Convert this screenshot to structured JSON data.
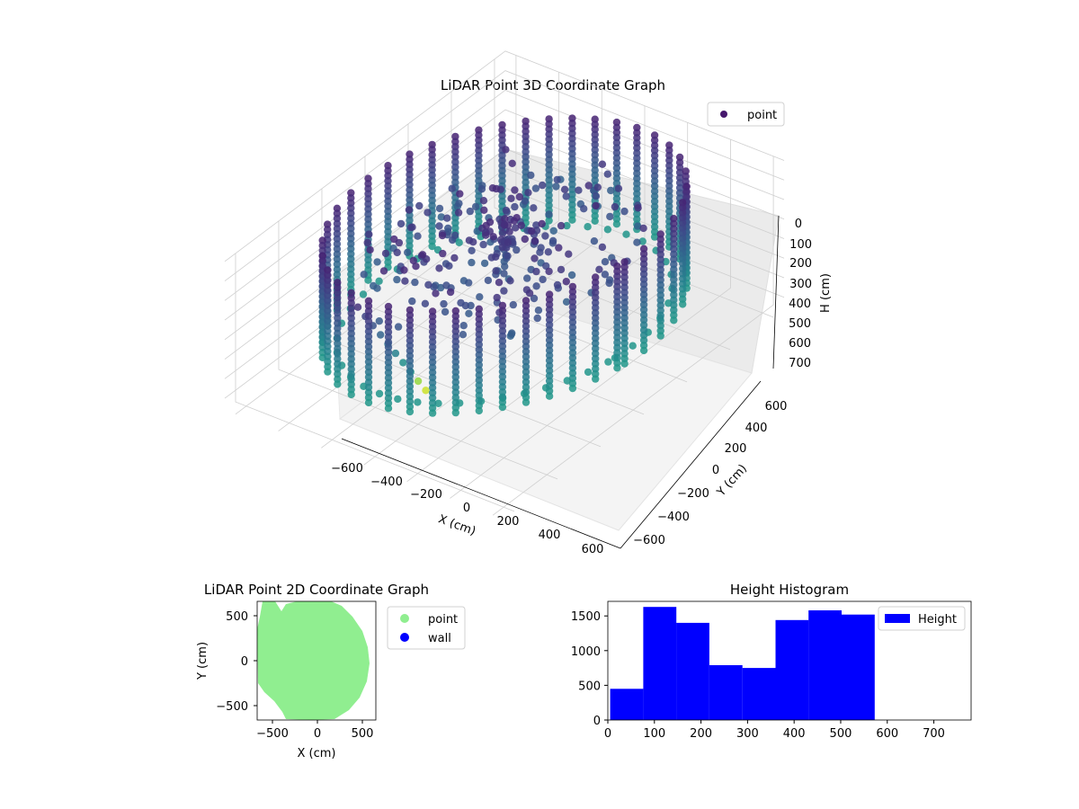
{
  "chart_data": [
    {
      "type": "scatter",
      "projection": "3d",
      "title": "LiDAR Point 3D Coordinate Graph",
      "xlabel": "X (cm)",
      "ylabel": "Y (cm)",
      "zlabel": "H (cm)",
      "xticks": [
        "−600",
        "−400",
        "−200",
        "0",
        "200",
        "400",
        "600"
      ],
      "yticks": [
        "−600",
        "−400",
        "−200",
        "0",
        "200",
        "400",
        "600"
      ],
      "zticks": [
        "0",
        "100",
        "200",
        "300",
        "400",
        "500",
        "600",
        "700"
      ],
      "xlim": [
        -650,
        650
      ],
      "ylim": [
        -650,
        650
      ],
      "zlim": [
        0,
        760
      ],
      "z_axis_inverted": true,
      "colormap": "viridis",
      "grid": true,
      "legend": {
        "placement": "upper-right",
        "entries": [
          {
            "label": "point",
            "color": "#46186d"
          }
        ]
      },
      "series": [
        {
          "name": "point"
        }
      ]
    },
    {
      "type": "scatter",
      "title": "LiDAR Point 2D Coordinate Graph",
      "xlabel": "X (cm)",
      "ylabel": "Y (cm)",
      "xticks": [
        "−500",
        "0",
        "500"
      ],
      "yticks": [
        "500",
        "0",
        "−500"
      ],
      "xlim": [
        -650,
        650
      ],
      "ylim": [
        -660,
        660
      ],
      "legend": {
        "placement": "outside-right",
        "entries": [
          {
            "label": "point",
            "color": "#90ee90"
          },
          {
            "label": "wall",
            "color": "#0000ff"
          }
        ]
      },
      "series": [
        {
          "name": "point",
          "color": "#90ee90"
        },
        {
          "name": "wall",
          "color": "#0000ff"
        }
      ]
    },
    {
      "type": "bar",
      "subtype": "histogram",
      "title": "Height Histogram",
      "xticks": [
        "0",
        "100",
        "200",
        "300",
        "400",
        "500",
        "600",
        "700"
      ],
      "yticks": [
        "0",
        "500",
        "1000",
        "1500"
      ],
      "xlim": [
        0,
        780
      ],
      "ylim": [
        0,
        1710
      ],
      "bin_edges": [
        5,
        76,
        147,
        218,
        289,
        360,
        431,
        502,
        573
      ],
      "values": [
        450,
        1630,
        1400,
        790,
        750,
        1440,
        1580,
        1520
      ],
      "legend": {
        "placement": "upper-right",
        "entries": [
          {
            "label": "Height",
            "color": "#0000ff"
          }
        ]
      },
      "series": [
        {
          "name": "Height",
          "color": "#0000ff"
        }
      ]
    }
  ]
}
